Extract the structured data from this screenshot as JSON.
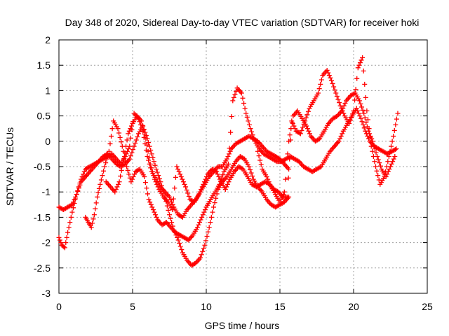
{
  "chart_data": {
    "type": "scatter",
    "title": "Day 348 of 2020, Sidereal Day-to-day VTEC variation (SDTVAR) for receiver hoki",
    "xlabel": "GPS time / hours",
    "ylabel": "SDTVAR / TECUs",
    "xlim": [
      0,
      25
    ],
    "ylim": [
      -3,
      2
    ],
    "xticks": [
      "0",
      "5",
      "10",
      "15",
      "20",
      "25"
    ],
    "yticks": [
      "2",
      "1.5",
      "1",
      "0.5",
      "0",
      "-0.5",
      "-1",
      "-1.5",
      "-2",
      "-2.5",
      "-3"
    ],
    "grid": true,
    "marker": "+",
    "series_color": "#ff0000",
    "series": [
      {
        "x": [
          0.0,
          0.3,
          0.6,
          0.9,
          1.2,
          1.5,
          1.8,
          2.1,
          2.4,
          2.7,
          3.0,
          3.3,
          3.6,
          3.9,
          4.2,
          4.5,
          4.8,
          5.1,
          5.4,
          5.7,
          6.0,
          6.3,
          6.6,
          6.9,
          7.2,
          7.5,
          7.8,
          8.1,
          8.4,
          8.7,
          9.0,
          9.3,
          9.6,
          9.9,
          10.2,
          10.5,
          10.8,
          11.1,
          11.4,
          11.7,
          12.0,
          12.3,
          12.6,
          12.9,
          13.2,
          13.5,
          13.8,
          14.1,
          14.4,
          14.7,
          15.0,
          15.3,
          15.6
        ],
        "y": [
          -1.3,
          -1.35,
          -1.3,
          -1.25,
          -1.05,
          -0.75,
          -0.55,
          -0.5,
          -0.45,
          -0.4,
          -0.35,
          -0.3,
          -0.25,
          -0.35,
          -0.45,
          -0.3,
          -0.1,
          0.55,
          0.45,
          0.2,
          -0.3,
          -0.6,
          -0.75,
          -0.9,
          -1.0,
          -1.1,
          -1.3,
          -1.45,
          -1.5,
          -1.35,
          -1.25,
          -1.15,
          -1.0,
          -0.85,
          -0.7,
          -0.6,
          -0.5,
          -0.5,
          -0.35,
          -0.15,
          -0.05,
          0.0,
          0.05,
          0.1,
          0.05,
          0.0,
          -0.1,
          -0.2,
          -0.25,
          -0.3,
          -0.35,
          -0.45,
          -0.55
        ]
      },
      {
        "x": [
          0.0,
          0.2,
          0.4,
          0.6,
          0.9,
          1.2,
          1.5,
          1.8,
          2.1,
          2.4,
          2.7,
          3.0,
          3.3,
          3.6,
          3.9,
          4.2,
          4.5,
          4.8,
          5.1,
          5.4,
          5.7,
          6.0,
          6.3,
          6.6,
          6.9,
          7.2,
          7.5,
          7.8,
          8.1,
          8.4,
          8.7,
          9.0,
          9.3,
          9.6,
          9.9,
          10.2,
          10.5,
          10.8,
          11.1,
          11.4,
          11.7,
          12.0,
          12.3,
          12.6,
          12.9,
          13.2,
          13.5,
          13.8,
          14.1,
          14.4,
          14.7,
          15.0,
          15.3,
          15.6
        ],
        "y": [
          -1.9,
          -2.05,
          -2.1,
          -1.8,
          -1.4,
          -1.05,
          -0.8,
          -0.7,
          -0.6,
          -0.5,
          -0.4,
          -0.3,
          -0.25,
          -0.35,
          -0.45,
          -0.5,
          -0.45,
          -0.35,
          -0.1,
          0.15,
          0.3,
          0.05,
          -0.25,
          -0.55,
          -0.8,
          -1.1,
          -1.45,
          -1.75,
          -1.95,
          -2.2,
          -2.35,
          -2.45,
          -2.4,
          -2.3,
          -2.05,
          -1.7,
          -1.3,
          -0.95,
          -0.8,
          -0.7,
          -0.55,
          -0.4,
          -0.3,
          -0.35,
          -0.5,
          -0.75,
          -0.9,
          -1.0,
          -1.15,
          -1.25,
          -1.3,
          -1.25,
          -1.2,
          -1.1
        ]
      },
      {
        "x": [
          1.8,
          2.0,
          2.2,
          2.4,
          2.6,
          2.8,
          3.1,
          3.4,
          3.7,
          4.0,
          4.3,
          4.6,
          4.9,
          5.2,
          5.5,
          5.8,
          6.1,
          6.4,
          6.7,
          7.0,
          7.3,
          7.6,
          7.9,
          8.2,
          8.5,
          8.8,
          9.1,
          9.4,
          9.7,
          10.0,
          10.3,
          10.6,
          10.9,
          11.2,
          11.5,
          11.8,
          12.1,
          12.4,
          12.7,
          13.0,
          13.3,
          13.6,
          13.9,
          14.2,
          14.5,
          14.8,
          15.1,
          15.4,
          15.7,
          16.0,
          16.3,
          16.6,
          16.9,
          17.2,
          17.5,
          17.8,
          18.1,
          18.4,
          18.7,
          19.0,
          19.3,
          19.6,
          19.9,
          20.2,
          20.5,
          20.8,
          21.1,
          21.4,
          21.7,
          22.0,
          22.3,
          22.6,
          22.9
        ],
        "y": [
          -1.5,
          -1.6,
          -1.7,
          -1.45,
          -1.1,
          -0.85,
          -0.5,
          -0.2,
          0.4,
          0.25,
          -0.1,
          -0.5,
          -0.8,
          -0.6,
          -0.55,
          -0.7,
          -1.15,
          -1.35,
          -1.55,
          -1.65,
          -1.6,
          -1.7,
          -1.8,
          -1.85,
          -1.9,
          -1.95,
          -1.85,
          -1.7,
          -1.5,
          -1.3,
          -1.15,
          -1.0,
          -0.85,
          -0.6,
          -0.45,
          0.8,
          1.05,
          0.95,
          0.55,
          0.25,
          0.0,
          -0.15,
          -0.25,
          -0.3,
          -0.35,
          -0.4,
          -0.4,
          -0.35,
          -0.3,
          -0.35,
          -0.4,
          -0.5,
          -0.55,
          -0.6,
          -0.55,
          -0.5,
          -0.35,
          -0.2,
          -0.1,
          0.0,
          0.2,
          0.35,
          0.5,
          0.65,
          0.45,
          0.2,
          0.0,
          -0.1,
          -0.15,
          -0.2,
          -0.25,
          -0.2,
          -0.15
        ]
      },
      {
        "x": [
          3.2,
          3.5,
          3.8,
          4.1,
          4.4,
          4.7,
          5.0,
          5.3,
          5.6,
          5.9,
          6.2,
          6.5,
          6.8,
          7.1,
          7.4,
          7.7,
          8.0,
          8.3,
          8.6,
          8.9,
          9.2,
          9.5,
          9.8,
          10.1,
          10.4,
          10.7,
          11.0,
          11.3,
          11.6,
          11.9,
          12.2,
          12.5,
          12.8,
          13.1,
          13.4,
          13.7,
          14.0,
          14.3,
          14.6,
          14.9,
          15.2,
          15.5,
          15.8,
          16.1,
          16.4,
          16.7,
          17.0,
          17.3,
          17.6,
          17.9,
          18.2,
          18.5,
          18.8,
          19.1,
          19.4,
          19.7,
          20.0,
          20.3,
          20.6,
          20.9,
          21.2,
          21.5,
          21.8,
          22.1,
          22.4,
          22.7,
          23.0
        ],
        "y": [
          -0.8,
          -0.9,
          -1.0,
          -0.8,
          -0.35,
          0.15,
          0.35,
          0.5,
          0.4,
          0.05,
          -0.45,
          -0.75,
          -0.95,
          -1.1,
          -1.2,
          -1.35,
          -0.5,
          -0.7,
          -0.9,
          -1.15,
          -1.2,
          -1.05,
          -0.85,
          -0.65,
          -0.55,
          -0.6,
          -0.8,
          -0.95,
          -0.75,
          -0.6,
          -0.5,
          -0.55,
          -0.7,
          -0.85,
          -0.9,
          -0.85,
          -0.8,
          -0.85,
          -0.95,
          -1.0,
          -1.1,
          -1.1,
          0.4,
          0.2,
          0.15,
          0.4,
          0.65,
          0.8,
          0.95,
          1.3,
          1.4,
          1.2,
          0.95,
          0.7,
          0.5,
          0.35,
          0.6,
          1.45,
          1.65,
          0.6,
          -0.1,
          -0.5,
          -0.85,
          -0.7,
          -0.3,
          0.1,
          0.55
        ]
      },
      {
        "x": [
          13.5,
          13.8,
          14.1,
          14.4,
          14.7,
          15.0,
          15.3,
          15.6,
          15.9,
          16.2,
          16.5,
          16.8,
          17.1,
          17.4,
          17.7,
          18.0,
          18.3,
          18.6,
          18.9,
          19.2,
          19.5,
          19.8,
          20.1,
          20.4,
          20.7,
          21.0,
          21.3,
          21.6,
          21.9,
          22.2,
          22.5,
          22.8
        ],
        "y": [
          -0.2,
          -0.55,
          -0.7,
          -0.9,
          -1.05,
          -1.2,
          -1.0,
          0.0,
          0.5,
          0.6,
          0.45,
          0.3,
          0.1,
          0.0,
          0.05,
          0.2,
          0.35,
          0.45,
          0.5,
          0.6,
          0.8,
          0.9,
          0.95,
          0.8,
          0.55,
          0.2,
          0.0,
          -0.3,
          -0.55,
          -0.7,
          -0.5,
          -0.3
        ]
      }
    ]
  }
}
